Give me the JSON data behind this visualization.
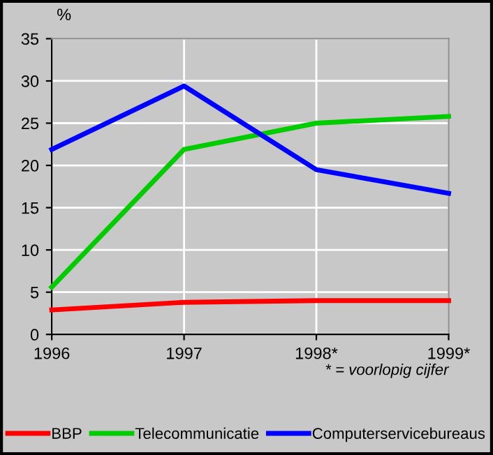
{
  "chart_data": {
    "type": "line",
    "ylabel": "%",
    "x": [
      1996,
      1997,
      1998,
      1999
    ],
    "series": [
      {
        "name": "BBP",
        "color": "#ff0000",
        "values": [
          2.9,
          3.8,
          4.0,
          4.0
        ]
      },
      {
        "name": "Telecommunicatie",
        "color": "#00cc00",
        "values": [
          5.6,
          21.9,
          25.0,
          25.8
        ]
      },
      {
        "name": "Computerservicebureaus",
        "color": "#0000ff",
        "values": [
          21.9,
          29.4,
          19.5,
          16.7
        ]
      }
    ],
    "xlim": [
      1996,
      1999
    ],
    "xticks": [
      1996,
      1997,
      {
        "value": 1998,
        "label": "1998*"
      },
      {
        "value": 1999,
        "label": "1999*"
      }
    ],
    "ylim": [
      0,
      35
    ],
    "yticks": [
      0,
      5,
      10,
      15,
      20,
      25,
      30,
      35
    ],
    "grid": true,
    "legend": "bottom",
    "marker": "none",
    "line_style": "solid",
    "annotations": [
      "* = voorlopig cijfer"
    ]
  }
}
